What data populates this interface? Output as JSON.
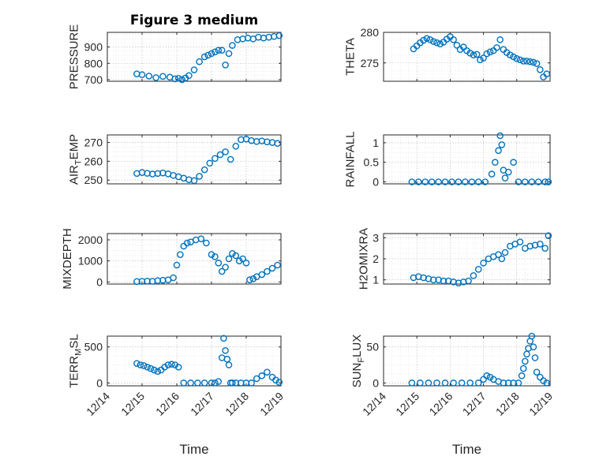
{
  "chart_data": [
    {
      "type": "scatter",
      "title": "Figure 3 medium",
      "ylabel": "PRESSURE",
      "xlabel": "",
      "ylim": [
        690,
        990
      ],
      "yticks": [
        700,
        800,
        900
      ],
      "ytick_labels": [
        "700",
        "800",
        "900"
      ],
      "xlim": [
        0,
        5
      ],
      "xticks": [
        0,
        1,
        2,
        3,
        4,
        5
      ],
      "xtick_labels": [],
      "x": [
        0.85,
        1.0,
        1.2,
        1.4,
        1.6,
        1.8,
        1.95,
        2.05,
        2.15,
        2.25,
        2.35,
        2.5,
        2.65,
        2.8,
        2.9,
        3.0,
        3.1,
        3.2,
        3.3,
        3.4,
        3.5,
        3.6,
        3.75,
        3.9,
        4.05,
        4.2,
        4.35,
        4.5,
        4.65,
        4.8,
        4.95
      ],
      "y": [
        735,
        730,
        722,
        712,
        720,
        715,
        705,
        708,
        700,
        710,
        725,
        760,
        810,
        840,
        850,
        860,
        870,
        880,
        880,
        790,
        860,
        910,
        945,
        950,
        955,
        950,
        960,
        955,
        960,
        965,
        970
      ]
    },
    {
      "type": "scatter",
      "ylabel": "THETA",
      "xlabel": "",
      "ylim": [
        272,
        280
      ],
      "yticks": [
        275,
        280
      ],
      "ytick_labels": [
        "275",
        "280"
      ],
      "xlim": [
        0,
        5
      ],
      "xticks": [
        0,
        1,
        2,
        3,
        4,
        5
      ],
      "xtick_labels": [],
      "x": [
        0.9,
        1.0,
        1.1,
        1.2,
        1.3,
        1.4,
        1.5,
        1.6,
        1.7,
        1.8,
        1.9,
        2.0,
        2.1,
        2.2,
        2.3,
        2.4,
        2.5,
        2.6,
        2.7,
        2.8,
        2.9,
        3.0,
        3.1,
        3.2,
        3.3,
        3.4,
        3.5,
        3.6,
        3.7,
        3.8,
        3.9,
        4.0,
        4.1,
        4.2,
        4.3,
        4.4,
        4.5,
        4.6,
        4.7,
        4.8,
        4.9
      ],
      "y": [
        277.3,
        277.8,
        278.3,
        278.7,
        279.0,
        278.8,
        278.5,
        278.3,
        278.1,
        278.4,
        278.9,
        279.3,
        278.8,
        277.9,
        277.2,
        277.6,
        277.0,
        276.6,
        276.3,
        276.4,
        275.5,
        275.8,
        276.5,
        276.8,
        277.0,
        277.5,
        278.8,
        277.2,
        276.7,
        276.3,
        276.0,
        275.7,
        275.5,
        275.3,
        275.3,
        275.2,
        275.1,
        274.9,
        273.9,
        272.7,
        273.2
      ]
    },
    {
      "type": "scatter",
      "ylabel": "AIR_TEMP",
      "xlabel": "",
      "ylim": [
        248,
        274
      ],
      "yticks": [
        250,
        260,
        270
      ],
      "ytick_labels": [
        "250",
        "260",
        "270"
      ],
      "xlim": [
        0,
        5
      ],
      "xticks": [
        0,
        1,
        2,
        3,
        4,
        5
      ],
      "xtick_labels": [],
      "x": [
        0.85,
        1.0,
        1.15,
        1.3,
        1.45,
        1.6,
        1.75,
        1.9,
        2.05,
        2.2,
        2.35,
        2.5,
        2.65,
        2.8,
        2.95,
        3.1,
        3.25,
        3.4,
        3.55,
        3.7,
        3.85,
        4.0,
        4.15,
        4.3,
        4.45,
        4.6,
        4.75,
        4.9
      ],
      "y": [
        253.5,
        254.0,
        253.6,
        253.2,
        253.5,
        253.8,
        253.3,
        252.5,
        251.8,
        251.0,
        250.2,
        249.7,
        252.0,
        255.5,
        259.0,
        261.5,
        263.5,
        265.0,
        261.0,
        268.0,
        271.5,
        271.8,
        271.0,
        270.5,
        270.8,
        270.3,
        270.0,
        269.5
      ]
    },
    {
      "type": "scatter",
      "ylabel": "RAINFALL",
      "xlabel": "",
      "ylim": [
        -0.05,
        1.2
      ],
      "yticks": [
        0,
        0.5,
        1
      ],
      "ytick_labels": [
        "0",
        "0.5",
        "1"
      ],
      "xlim": [
        0,
        5
      ],
      "xticks": [
        0,
        1,
        2,
        3,
        4,
        5
      ],
      "xtick_labels": [],
      "x": [
        0.85,
        1.05,
        1.25,
        1.45,
        1.65,
        1.85,
        2.05,
        2.25,
        2.45,
        2.65,
        2.85,
        3.05,
        3.25,
        3.35,
        3.45,
        3.5,
        3.55,
        3.6,
        3.65,
        3.75,
        3.9,
        4.05,
        4.25,
        4.45,
        4.65,
        4.85,
        4.95
      ],
      "y": [
        0,
        0,
        0,
        0,
        0,
        0,
        0,
        0,
        0,
        0,
        0,
        0,
        0.2,
        0.5,
        0.8,
        1.18,
        0.95,
        0.3,
        0.1,
        0.25,
        0.5,
        0,
        0,
        0,
        0,
        0,
        0
      ]
    },
    {
      "type": "scatter",
      "ylabel": "MIXDEPTH",
      "xlabel": "",
      "ylim": [
        -100,
        2300
      ],
      "yticks": [
        0,
        1000,
        2000
      ],
      "ytick_labels": [
        "0",
        "1000",
        "2000"
      ],
      "xlim": [
        0,
        5
      ],
      "xticks": [
        0,
        1,
        2,
        3,
        4,
        5
      ],
      "xtick_labels": [],
      "x": [
        0.85,
        1.0,
        1.15,
        1.3,
        1.45,
        1.6,
        1.75,
        1.9,
        2.0,
        2.1,
        2.2,
        2.3,
        2.4,
        2.55,
        2.7,
        2.85,
        3.0,
        3.1,
        3.2,
        3.3,
        3.4,
        3.5,
        3.6,
        3.7,
        3.8,
        3.9,
        4.0,
        4.1,
        4.2,
        4.3,
        4.45,
        4.6,
        4.75,
        4.9
      ],
      "y": [
        20,
        30,
        40,
        30,
        60,
        80,
        100,
        200,
        800,
        1300,
        1700,
        1850,
        1900,
        2000,
        2050,
        1850,
        1300,
        1200,
        900,
        500,
        700,
        1100,
        1350,
        1250,
        1000,
        1100,
        900,
        100,
        150,
        250,
        350,
        500,
        650,
        800
      ]
    },
    {
      "type": "scatter",
      "ylabel": "H2OMIXRA",
      "xlabel": "",
      "ylim": [
        0.8,
        3.2
      ],
      "yticks": [
        1,
        2,
        3
      ],
      "ytick_labels": [
        "1",
        "2",
        "3"
      ],
      "xlim": [
        0,
        5
      ],
      "xticks": [
        0,
        1,
        2,
        3,
        4,
        5
      ],
      "xtick_labels": [],
      "x": [
        0.9,
        1.05,
        1.2,
        1.35,
        1.5,
        1.65,
        1.8,
        1.95,
        2.1,
        2.25,
        2.4,
        2.55,
        2.7,
        2.85,
        3.0,
        3.15,
        3.3,
        3.45,
        3.55,
        3.65,
        3.8,
        3.95,
        4.1,
        4.25,
        4.4,
        4.55,
        4.7,
        4.85,
        4.95
      ],
      "y": [
        1.1,
        1.15,
        1.1,
        1.05,
        1.0,
        1.0,
        0.95,
        0.95,
        0.9,
        0.85,
        0.9,
        0.95,
        1.2,
        1.5,
        1.8,
        2.0,
        2.1,
        2.2,
        2.0,
        2.3,
        2.6,
        2.7,
        2.8,
        2.5,
        2.6,
        2.65,
        2.7,
        2.5,
        3.1
      ]
    },
    {
      "type": "scatter",
      "ylabel": "TERR_MSL",
      "xlabel": "Time",
      "ylim": [
        -40,
        650
      ],
      "yticks": [
        0,
        500
      ],
      "ytick_labels": [
        "0",
        "500"
      ],
      "xlim": [
        0,
        5
      ],
      "xticks": [
        0,
        1,
        2,
        3,
        4,
        5
      ],
      "xtick_labels": [
        "12/14",
        "12/15",
        "12/16",
        "12/17",
        "12/18",
        "12/19"
      ],
      "x": [
        0.85,
        0.95,
        1.05,
        1.15,
        1.25,
        1.35,
        1.45,
        1.55,
        1.65,
        1.75,
        1.85,
        1.95,
        2.05,
        2.2,
        2.4,
        2.6,
        2.8,
        3.0,
        3.1,
        3.2,
        3.3,
        3.35,
        3.4,
        3.45,
        3.5,
        3.55,
        3.6,
        3.7,
        3.85,
        4.0,
        4.15,
        4.3,
        4.45,
        4.6,
        4.75,
        4.85,
        4.95
      ],
      "y": [
        270,
        250,
        240,
        220,
        200,
        180,
        160,
        180,
        220,
        250,
        260,
        250,
        220,
        0,
        0,
        0,
        0,
        0,
        0,
        20,
        350,
        620,
        450,
        330,
        250,
        0,
        0,
        0,
        0,
        0,
        0,
        60,
        100,
        150,
        80,
        40,
        10
      ]
    },
    {
      "type": "scatter",
      "ylabel": "SUN_FLUX",
      "xlabel": "Time",
      "ylim": [
        -4,
        65
      ],
      "yticks": [
        0,
        50
      ],
      "ytick_labels": [
        "0",
        "50"
      ],
      "xlim": [
        0,
        5
      ],
      "xticks": [
        0,
        1,
        2,
        3,
        4,
        5
      ],
      "xtick_labels": [
        "12/14",
        "12/15",
        "12/16",
        "12/17",
        "12/18",
        "12/19"
      ],
      "x": [
        0.85,
        1.1,
        1.35,
        1.6,
        1.85,
        2.1,
        2.35,
        2.6,
        2.85,
        3.0,
        3.1,
        3.2,
        3.3,
        3.45,
        3.6,
        3.75,
        3.9,
        4.05,
        4.15,
        4.2,
        4.25,
        4.3,
        4.35,
        4.4,
        4.45,
        4.5,
        4.55,
        4.6,
        4.7,
        4.8,
        4.9
      ],
      "y": [
        0,
        0,
        0,
        0,
        0,
        0,
        0,
        0,
        0,
        5,
        10,
        8,
        5,
        2,
        0,
        0,
        0,
        0,
        10,
        20,
        30,
        40,
        48,
        58,
        65,
        50,
        35,
        15,
        8,
        3,
        0
      ]
    }
  ]
}
